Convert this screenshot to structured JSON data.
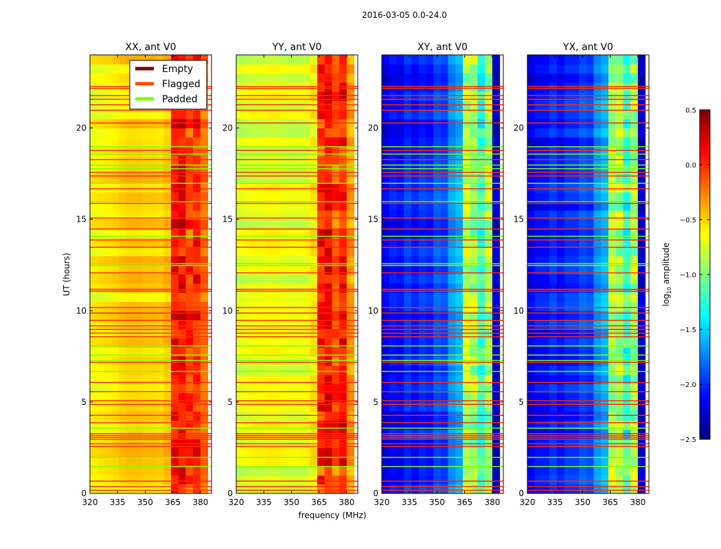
{
  "chart_data": {
    "type": "heatmap",
    "title": "2016-03-05 0.0-24.0",
    "xlabel": "frequency (MHz)",
    "ylabel": "UT (hours)",
    "xlim": [
      320,
      386
    ],
    "ylim": [
      0,
      24
    ],
    "xticks": [
      "320",
      "335",
      "350",
      "365",
      "380"
    ],
    "xtick_values": [
      320,
      335,
      350,
      365,
      380
    ],
    "yticks": [
      "0",
      "5",
      "10",
      "15",
      "20"
    ],
    "ytick_values": [
      0,
      5,
      10,
      15,
      20
    ],
    "colorbar": {
      "label": "log",
      "label_sub": "10",
      "label_rest": " amplitude",
      "range": [
        -2.5,
        0.5
      ],
      "ticks": [
        "0.5",
        "0.0",
        "−0.5",
        "−1.0",
        "−1.5",
        "−2.0",
        "−2.5"
      ],
      "tick_values": [
        0.5,
        0.0,
        -0.5,
        -1.0,
        -1.5,
        -2.0,
        -2.5
      ],
      "colormap": "jet"
    },
    "legend": {
      "placement": "top-right of first panel",
      "entries": [
        {
          "label": "Empty",
          "color": "#800000"
        },
        {
          "label": "Flagged",
          "color": "#ff4500"
        },
        {
          "label": "Padded",
          "color": "#7fff00"
        }
      ]
    },
    "freq_bins_mhz": [
      320,
      324,
      328,
      332,
      336,
      340,
      344,
      348,
      352,
      356,
      360,
      364,
      368,
      372,
      376,
      380,
      384
    ],
    "panels": [
      {
        "title": "XX, ant V0",
        "profile": [
          -0.62,
          -0.6,
          -0.58,
          -0.55,
          -0.5,
          -0.48,
          -0.48,
          -0.5,
          -0.5,
          -0.52,
          -0.45,
          0.05,
          0.12,
          -0.05,
          0.0,
          -0.2
        ]
      },
      {
        "title": "YY, ant V0",
        "profile": [
          -0.75,
          -0.72,
          -0.7,
          -0.7,
          -0.68,
          -0.68,
          -0.7,
          -0.72,
          -0.72,
          -0.7,
          -0.6,
          0.0,
          0.1,
          -0.1,
          0.05,
          -0.35
        ]
      },
      {
        "title": "XY, ant V0",
        "profile": [
          -2.2,
          -2.1,
          -2.15,
          -2.0,
          -2.1,
          -2.0,
          -2.05,
          -1.9,
          -1.95,
          -1.7,
          -1.6,
          -0.85,
          -0.9,
          -1.2,
          -0.9,
          -2.3
        ]
      },
      {
        "title": "YX, ant V0",
        "profile": [
          -2.2,
          -2.1,
          -2.1,
          -2.0,
          -2.1,
          -2.0,
          -2.0,
          -1.9,
          -1.95,
          -1.7,
          -1.6,
          -0.85,
          -0.9,
          -1.2,
          -0.9,
          -2.3
        ]
      }
    ],
    "flagged_hours": [
      0.2,
      0.4,
      0.7,
      2.6,
      2.75,
      3.0,
      3.1,
      3.2,
      3.3,
      3.9,
      4.3,
      4.9,
      5.1,
      5.6,
      6.1,
      7.2,
      8.6,
      8.8,
      9.0,
      9.2,
      9.5,
      9.9,
      10.2,
      11.1,
      11.2,
      12.1,
      13.5,
      13.9,
      14.5,
      15.1,
      15.9,
      16.7,
      17.4,
      17.6,
      18.3,
      18.8,
      20.3,
      21.0,
      21.3,
      21.6,
      21.8,
      22.2,
      22.3
    ],
    "padded_hours": [
      1.5,
      2.0,
      3.6,
      6.7,
      7.3,
      7.6,
      8.1,
      12.5,
      12.6,
      14.1,
      16.0,
      17.0,
      17.8,
      18.0,
      18.6,
      19.0
    ]
  }
}
